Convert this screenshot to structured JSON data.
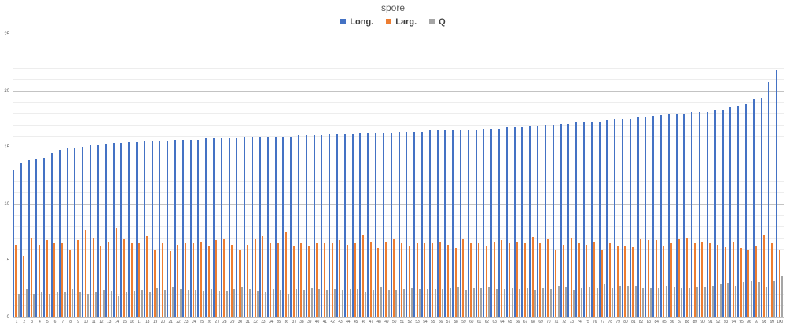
{
  "chart": {
    "background": "#ffffff"
  },
  "colors": {
    "major_grid": "#c3c3c3",
    "minor_grid": "#ededed",
    "axis_text": "#595959",
    "title_text": "#595959",
    "legend_text": "#3f3f3f"
  },
  "chart_data": {
    "type": "bar",
    "title": "spore",
    "xlabel": "",
    "ylabel": "",
    "ylim": [
      0,
      25
    ],
    "yticks": [
      0,
      5,
      10,
      15,
      20,
      25
    ],
    "minor_unit": 1,
    "grid": "major+minor horizontal",
    "legend_position": "top",
    "categories": [
      "1",
      "2",
      "3",
      "4",
      "5",
      "6",
      "7",
      "8",
      "9",
      "10",
      "11",
      "12",
      "13",
      "14",
      "15",
      "16",
      "17",
      "18",
      "19",
      "20",
      "21",
      "22",
      "23",
      "24",
      "25",
      "26",
      "27",
      "28",
      "29",
      "30",
      "31",
      "32",
      "33",
      "34",
      "35",
      "36",
      "37",
      "38",
      "39",
      "40",
      "41",
      "42",
      "43",
      "44",
      "45",
      "46",
      "47",
      "48",
      "49",
      "50",
      "51",
      "52",
      "53",
      "54",
      "55",
      "56",
      "57",
      "58",
      "59",
      "60",
      "61",
      "62",
      "63",
      "64",
      "65",
      "66",
      "67",
      "68",
      "69",
      "70",
      "71",
      "72",
      "73",
      "74",
      "75",
      "76",
      "77",
      "78",
      "79",
      "80",
      "81",
      "82",
      "83",
      "84",
      "85",
      "86",
      "87",
      "88",
      "89",
      "90",
      "91",
      "92",
      "93",
      "94",
      "95",
      "96",
      "97",
      "98",
      "99",
      "100"
    ],
    "series": [
      {
        "name": "Long.",
        "color": "#4472C4",
        "values": [
          13.0,
          13.7,
          13.9,
          14.0,
          14.1,
          14.5,
          14.8,
          14.9,
          14.9,
          15.1,
          15.2,
          15.2,
          15.3,
          15.4,
          15.4,
          15.5,
          15.5,
          15.6,
          15.6,
          15.6,
          15.6,
          15.7,
          15.7,
          15.7,
          15.7,
          15.8,
          15.8,
          15.8,
          15.8,
          15.8,
          15.9,
          15.9,
          15.9,
          16.0,
          16.0,
          16.0,
          16.0,
          16.1,
          16.1,
          16.1,
          16.1,
          16.2,
          16.2,
          16.2,
          16.2,
          16.3,
          16.3,
          16.3,
          16.3,
          16.3,
          16.4,
          16.4,
          16.4,
          16.4,
          16.5,
          16.5,
          16.5,
          16.5,
          16.6,
          16.6,
          16.6,
          16.7,
          16.7,
          16.7,
          16.8,
          16.8,
          16.8,
          16.9,
          16.9,
          17.0,
          17.0,
          17.1,
          17.1,
          17.2,
          17.2,
          17.3,
          17.3,
          17.4,
          17.5,
          17.5,
          17.6,
          17.7,
          17.7,
          17.8,
          17.9,
          18.0,
          18.0,
          18.0,
          18.1,
          18.1,
          18.1,
          18.3,
          18.3,
          18.6,
          18.7,
          18.9,
          19.3,
          19.4,
          20.8,
          21.9
        ]
      },
      {
        "name": "Larg.",
        "color": "#ED7D31",
        "values": [
          6.4,
          5.4,
          7.0,
          6.4,
          6.8,
          6.6,
          6.6,
          5.9,
          6.8,
          7.7,
          7.0,
          6.3,
          6.7,
          7.9,
          6.9,
          6.6,
          6.5,
          7.2,
          6.0,
          6.6,
          5.8,
          6.4,
          6.6,
          6.5,
          6.7,
          6.3,
          6.8,
          6.9,
          6.4,
          5.9,
          6.4,
          6.9,
          7.2,
          6.5,
          6.6,
          7.5,
          6.3,
          6.6,
          6.3,
          6.5,
          6.6,
          6.5,
          6.8,
          6.4,
          6.5,
          7.3,
          6.7,
          6.1,
          6.7,
          6.9,
          6.5,
          6.3,
          6.5,
          6.5,
          6.6,
          6.7,
          6.4,
          6.1,
          6.9,
          6.5,
          6.5,
          6.3,
          6.7,
          6.8,
          6.5,
          6.7,
          6.5,
          7.1,
          6.5,
          6.9,
          6.0,
          6.4,
          7.0,
          6.5,
          6.4,
          6.7,
          6.0,
          6.6,
          6.3,
          6.3,
          6.2,
          6.9,
          6.8,
          6.8,
          6.3,
          6.6,
          6.9,
          7.0,
          6.6,
          6.7,
          6.5,
          6.4,
          6.2,
          6.7,
          6.1,
          5.9,
          6.3,
          7.3,
          6.6,
          6.0
        ]
      },
      {
        "name": "Q",
        "color": "#A5A5A5",
        "values": [
          2.0,
          2.5,
          2.0,
          2.2,
          2.1,
          2.2,
          2.2,
          2.5,
          2.2,
          2.0,
          2.2,
          2.4,
          2.3,
          1.9,
          2.2,
          2.3,
          2.4,
          2.2,
          2.6,
          2.4,
          2.7,
          2.5,
          2.4,
          2.4,
          2.3,
          2.5,
          2.3,
          2.3,
          2.5,
          2.7,
          2.5,
          2.3,
          2.2,
          2.5,
          2.4,
          2.1,
          2.5,
          2.4,
          2.6,
          2.5,
          2.4,
          2.5,
          2.4,
          2.5,
          2.5,
          2.2,
          2.4,
          2.7,
          2.4,
          2.4,
          2.5,
          2.6,
          2.5,
          2.5,
          2.5,
          2.5,
          2.6,
          2.7,
          2.4,
          2.6,
          2.6,
          2.7,
          2.5,
          2.5,
          2.6,
          2.5,
          2.6,
          2.4,
          2.6,
          2.5,
          2.8,
          2.7,
          2.4,
          2.6,
          2.7,
          2.6,
          2.9,
          2.6,
          2.8,
          2.8,
          2.8,
          2.6,
          2.6,
          2.6,
          2.8,
          2.7,
          2.6,
          2.6,
          2.7,
          2.7,
          2.8,
          2.9,
          3.0,
          2.8,
          3.1,
          3.2,
          3.1,
          2.7,
          3.2,
          3.6
        ]
      }
    ]
  }
}
